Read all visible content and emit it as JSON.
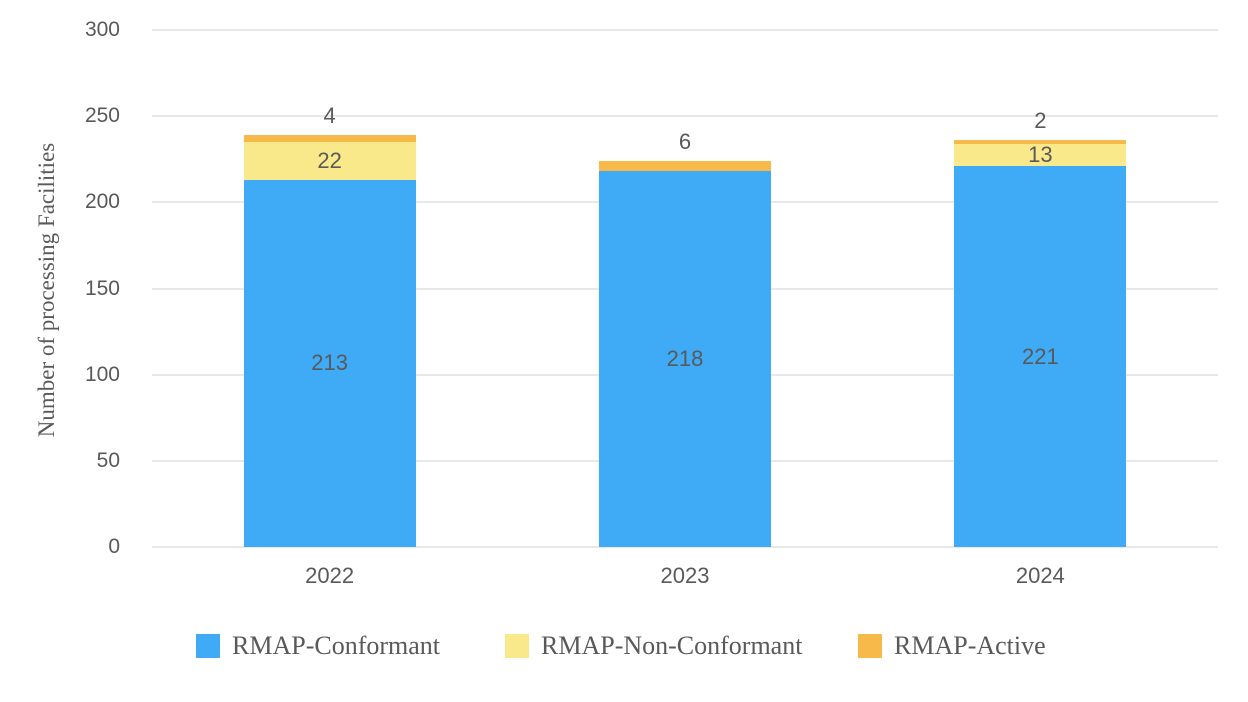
{
  "chart_data": {
    "type": "bar",
    "stacked": true,
    "title": "",
    "categories": [
      "2022",
      "2023",
      "2024"
    ],
    "series": [
      {
        "name": "RMAP-Conformant",
        "color": "#3FABF7",
        "values": [
          213,
          218,
          221
        ],
        "label_position": "inside"
      },
      {
        "name": "RMAP-Non-Conformant",
        "color": "#FAE98A",
        "values": [
          22,
          0,
          13
        ],
        "label_position": "inside"
      },
      {
        "name": "RMAP-Active",
        "color": "#F8B94B",
        "values": [
          4,
          6,
          2
        ],
        "label_position": "above"
      }
    ],
    "xlabel": "",
    "ylabel": "Number of processing Facilities",
    "ylim": [
      0,
      300
    ],
    "yticks": [
      0,
      50,
      100,
      150,
      200,
      250,
      300
    ],
    "grid": true,
    "legend_position": "bottom"
  },
  "colors": {
    "background": "#FFFFFF",
    "text": "#595959",
    "gridline": "#E8E8E8"
  }
}
